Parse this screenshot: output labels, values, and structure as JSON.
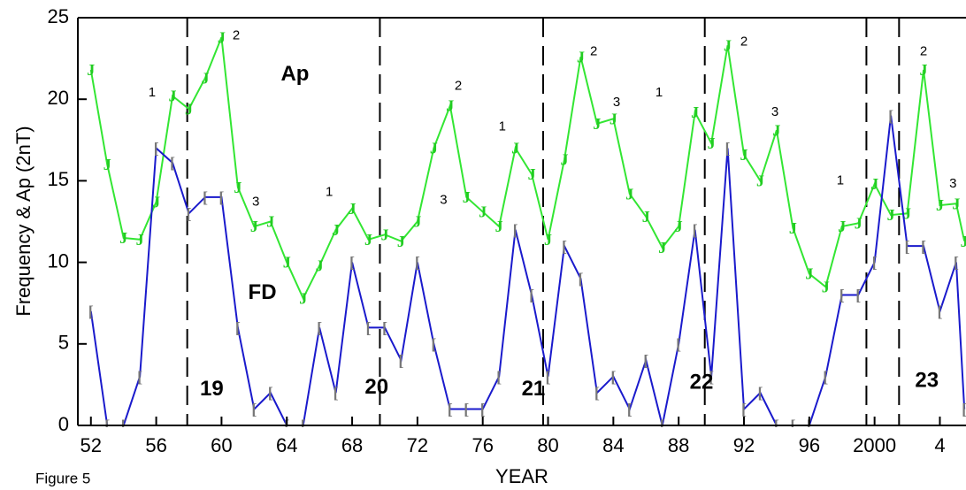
{
  "chart_data": {
    "type": "line",
    "x_label": "YEAR",
    "y_label": "Frequency & Ap (2nT)",
    "caption": "Figure 5",
    "xlim": [
      1951.2,
      2005.6
    ],
    "ylim": [
      0,
      25
    ],
    "xticks": [
      {
        "value": 1952,
        "label": "52"
      },
      {
        "value": 1956,
        "label": "56"
      },
      {
        "value": 1960,
        "label": "60"
      },
      {
        "value": 1964,
        "label": "64"
      },
      {
        "value": 1968,
        "label": "68"
      },
      {
        "value": 1972,
        "label": "72"
      },
      {
        "value": 1976,
        "label": "76"
      },
      {
        "value": 1980,
        "label": "80"
      },
      {
        "value": 1984,
        "label": "84"
      },
      {
        "value": 1988,
        "label": "88"
      },
      {
        "value": 1992,
        "label": "92"
      },
      {
        "value": 1996,
        "label": "96"
      },
      {
        "value": 2000,
        "label": "2000"
      },
      {
        "value": 2004,
        "label": "4"
      }
    ],
    "yticks": [
      0,
      5,
      10,
      15,
      20,
      25
    ],
    "vlines": [
      1957.9,
      1969.7,
      1979.7,
      1989.6,
      1999.5,
      2001.5
    ],
    "x": [
      1952,
      1953,
      1954,
      1955,
      1956,
      1957,
      1958,
      1959,
      1960,
      1961,
      1962,
      1963,
      1964,
      1965,
      1966,
      1967,
      1968,
      1969,
      1970,
      1971,
      1972,
      1973,
      1974,
      1975,
      1976,
      1977,
      1978,
      1979,
      1980,
      1981,
      1982,
      1983,
      1984,
      1985,
      1986,
      1987,
      1988,
      1989,
      1990,
      1991,
      1992,
      1993,
      1994,
      1995,
      1996,
      1997,
      1998,
      1999,
      2000,
      2001,
      2002,
      2003,
      2004,
      2005,
      2005.5
    ],
    "series": [
      {
        "name": "Ap",
        "color": "#33e633",
        "marker": "J",
        "marker_color": "#22cc22",
        "values": [
          21.8,
          16,
          11.5,
          11.4,
          13.7,
          20.2,
          19.4,
          21.3,
          23.8,
          14.6,
          12.2,
          12.5,
          10,
          7.8,
          9.8,
          12,
          13.3,
          11.4,
          11.7,
          11.3,
          12.5,
          17,
          19.6,
          14,
          13.1,
          12.2,
          17,
          15.4,
          11.4,
          16.3,
          22.6,
          18.5,
          18.8,
          14.2,
          12.8,
          10.9,
          12.2,
          19.2,
          17.3,
          23.3,
          16.6,
          15,
          18.1,
          12.1,
          9.3,
          8.5,
          12.2,
          12.4,
          14.8,
          12.9,
          13,
          21.8,
          13.5,
          13.6,
          11.3
        ]
      },
      {
        "name": "FD",
        "color": "#1a1acc",
        "marker": "[",
        "marker_color": "#777777",
        "values": [
          7,
          0,
          0,
          3,
          17,
          16.1,
          13,
          14,
          14,
          6,
          1,
          2,
          0,
          0,
          6,
          2,
          10,
          6,
          6,
          4,
          10,
          5,
          1,
          1,
          1,
          3,
          12,
          8,
          3,
          11,
          9,
          2,
          3,
          1,
          4,
          0,
          5,
          12,
          3,
          17,
          1,
          2,
          0,
          0,
          0,
          3,
          8,
          8,
          10,
          19,
          11,
          11,
          7,
          10,
          1
        ]
      }
    ],
    "annotations": [
      {
        "text": "Ap",
        "x": 1964.5,
        "y": 21.5,
        "style": "big"
      },
      {
        "text": "FD",
        "x": 1962.5,
        "y": 8.1,
        "style": "big"
      },
      {
        "text": "19",
        "x": 1959.4,
        "y": 2.2,
        "style": "big"
      },
      {
        "text": "20",
        "x": 1969.5,
        "y": 2.3,
        "style": "big"
      },
      {
        "text": "21",
        "x": 1979.1,
        "y": 2.2,
        "style": "big"
      },
      {
        "text": "22",
        "x": 1989.4,
        "y": 2.6,
        "style": "big"
      },
      {
        "text": "23",
        "x": 2003.2,
        "y": 2.7,
        "style": "big"
      },
      {
        "text": "1",
        "x": 1955.75,
        "y": 20.4,
        "style": "small"
      },
      {
        "text": "2",
        "x": 1960.9,
        "y": 23.9,
        "style": "small"
      },
      {
        "text": "3",
        "x": 1962.1,
        "y": 13.7,
        "style": "small"
      },
      {
        "text": "1",
        "x": 1966.6,
        "y": 14.3,
        "style": "small"
      },
      {
        "text": "3",
        "x": 1973.6,
        "y": 13.8,
        "style": "small"
      },
      {
        "text": "2",
        "x": 1974.5,
        "y": 20.8,
        "style": "small"
      },
      {
        "text": "1",
        "x": 1977.2,
        "y": 18.3,
        "style": "small"
      },
      {
        "text": "2",
        "x": 1982.8,
        "y": 22.9,
        "style": "small"
      },
      {
        "text": "3",
        "x": 1984.2,
        "y": 19.8,
        "style": "small"
      },
      {
        "text": "1",
        "x": 1986.8,
        "y": 20.4,
        "style": "small"
      },
      {
        "text": "2",
        "x": 1992.0,
        "y": 23.5,
        "style": "small"
      },
      {
        "text": "3",
        "x": 1993.9,
        "y": 19.2,
        "style": "small"
      },
      {
        "text": "1",
        "x": 1997.9,
        "y": 15.0,
        "style": "small"
      },
      {
        "text": "2",
        "x": 2003.0,
        "y": 22.9,
        "style": "small"
      },
      {
        "text": "3",
        "x": 2004.8,
        "y": 14.8,
        "style": "small"
      }
    ]
  }
}
